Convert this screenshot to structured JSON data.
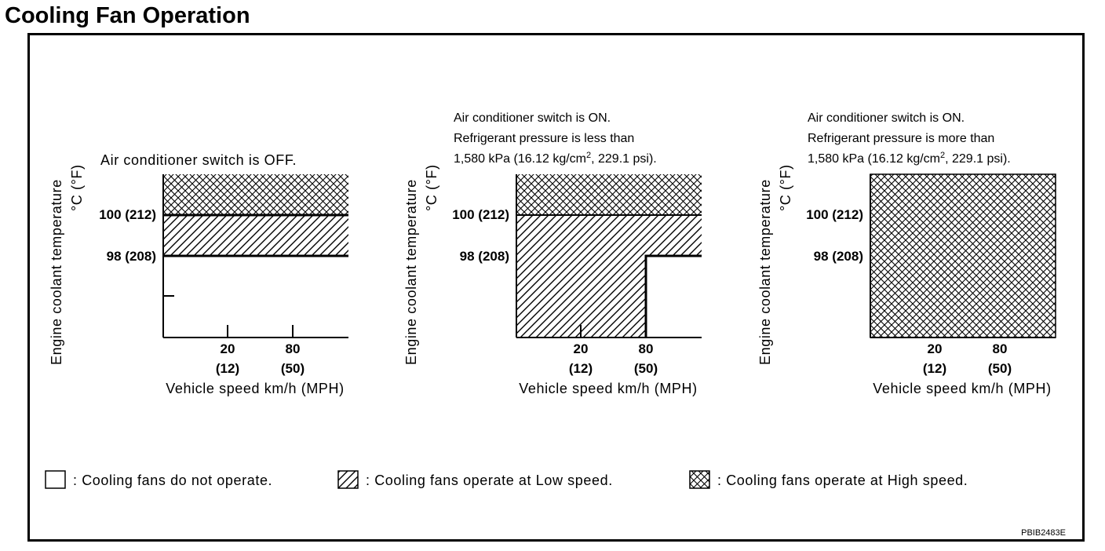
{
  "title": "Cooling Fan Operation",
  "colors": {
    "ink": "#000000",
    "background": "#ffffff"
  },
  "y_axis_label": [
    "Engine coolant temperature",
    "°C (°F)"
  ],
  "y_ticks": [
    "100 (212)",
    "98 (208)"
  ],
  "x_ticks": [
    {
      "kmh": "20",
      "mph": "(12)"
    },
    {
      "kmh": "80",
      "mph": "(50)"
    }
  ],
  "x_axis_label": "Vehicle speed km/h (MPH)",
  "panels": [
    {
      "caption_lines": [
        "Air conditioner switch is OFF."
      ],
      "regions": [
        {
          "area": "above 100 °C",
          "fan": "High speed"
        },
        {
          "area": "98–100 °C",
          "fan": "Low speed"
        },
        {
          "area": "below 98 °C",
          "fan": "do not operate"
        }
      ]
    },
    {
      "caption_lines": [
        "Air conditioner switch is ON.",
        "Refrigerant pressure is less than",
        "1,580 kPa (16.12 kg/cm",
        "2",
        ", 229.1 psi)."
      ],
      "regions": [
        {
          "area": "above 100 °C",
          "fan": "High speed"
        },
        {
          "area": "below 100 °C, up to 80 km/h; 98–100 °C above 80 km/h",
          "fan": "Low speed"
        },
        {
          "area": "below 98 °C above 80 km/h",
          "fan": "do not operate"
        }
      ]
    },
    {
      "caption_lines": [
        "Air conditioner switch is ON.",
        "Refrigerant pressure is more than",
        "1,580 kPa (16.12 kg/cm",
        "2",
        ", 229.1 psi)."
      ],
      "regions": [
        {
          "area": "all temperatures and speeds",
          "fan": "High speed"
        }
      ]
    }
  ],
  "legend": [
    {
      "pattern": "none",
      "label": ": Cooling fans do not operate."
    },
    {
      "pattern": "diagonal-hatch",
      "label": ": Cooling fans operate at Low speed."
    },
    {
      "pattern": "cross-hatch",
      "label": ": Cooling fans operate at High speed."
    }
  ],
  "figure_code": "PBIB2483E"
}
